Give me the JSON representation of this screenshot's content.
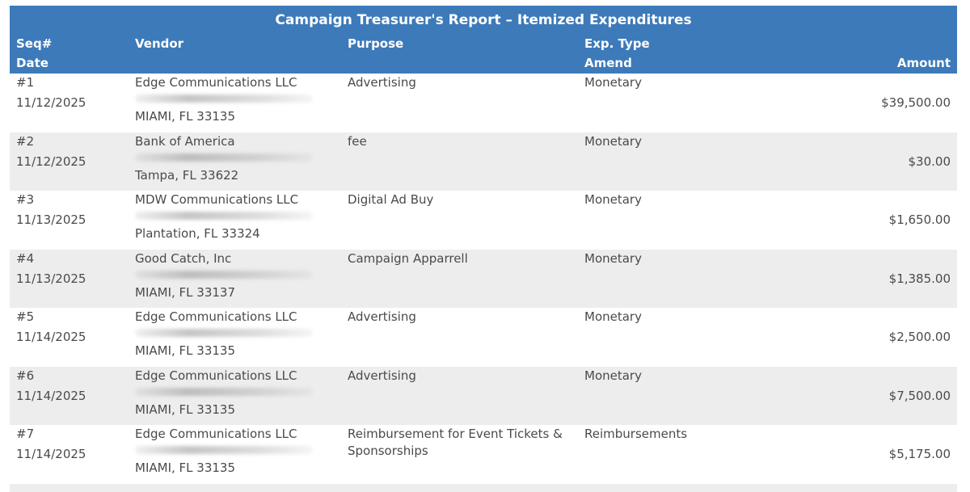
{
  "report": {
    "title": "Campaign Treasurer's Report – Itemized Expenditures",
    "headers": {
      "seq": "Seq#",
      "date": "Date",
      "vendor": "Vendor",
      "purpose": "Purpose",
      "exp_type": "Exp. Type",
      "amend": "Amend",
      "amount": "Amount"
    },
    "rows": [
      {
        "seq": "#1",
        "date": "11/12/2025",
        "vendor": "Edge Communications LLC",
        "city": "MIAMI, FL 33135",
        "purpose": "Advertising",
        "type": "Monetary",
        "amount": "$39,500.00"
      },
      {
        "seq": "#2",
        "date": "11/12/2025",
        "vendor": "Bank of America",
        "city": "Tampa, FL 33622",
        "purpose": "fee",
        "type": "Monetary",
        "amount": "$30.00"
      },
      {
        "seq": "#3",
        "date": "11/13/2025",
        "vendor": "MDW Communications LLC",
        "city": "Plantation, FL 33324",
        "purpose": "Digital Ad Buy",
        "type": "Monetary",
        "amount": "$1,650.00"
      },
      {
        "seq": "#4",
        "date": "11/13/2025",
        "vendor": "Good Catch, Inc",
        "city": "MIAMI, FL 33137",
        "purpose": "Campaign Apparrell",
        "type": "Monetary",
        "amount": "$1,385.00"
      },
      {
        "seq": "#5",
        "date": "11/14/2025",
        "vendor": "Edge Communications LLC",
        "city": "MIAMI, FL 33135",
        "purpose": "Advertising",
        "type": "Monetary",
        "amount": "$2,500.00"
      },
      {
        "seq": "#6",
        "date": "11/14/2025",
        "vendor": "Edge Communications LLC",
        "city": "MIAMI, FL 33135",
        "purpose": "Advertising",
        "type": "Monetary",
        "amount": "$7,500.00"
      },
      {
        "seq": "#7",
        "date": "11/14/2025",
        "vendor": "Edge Communications LLC",
        "city": "MIAMI, FL 33135",
        "purpose": "Reimbursement for Event Tickets & Sponsorships",
        "type": "Reimbursements",
        "amount": "$5,175.00"
      }
    ]
  }
}
